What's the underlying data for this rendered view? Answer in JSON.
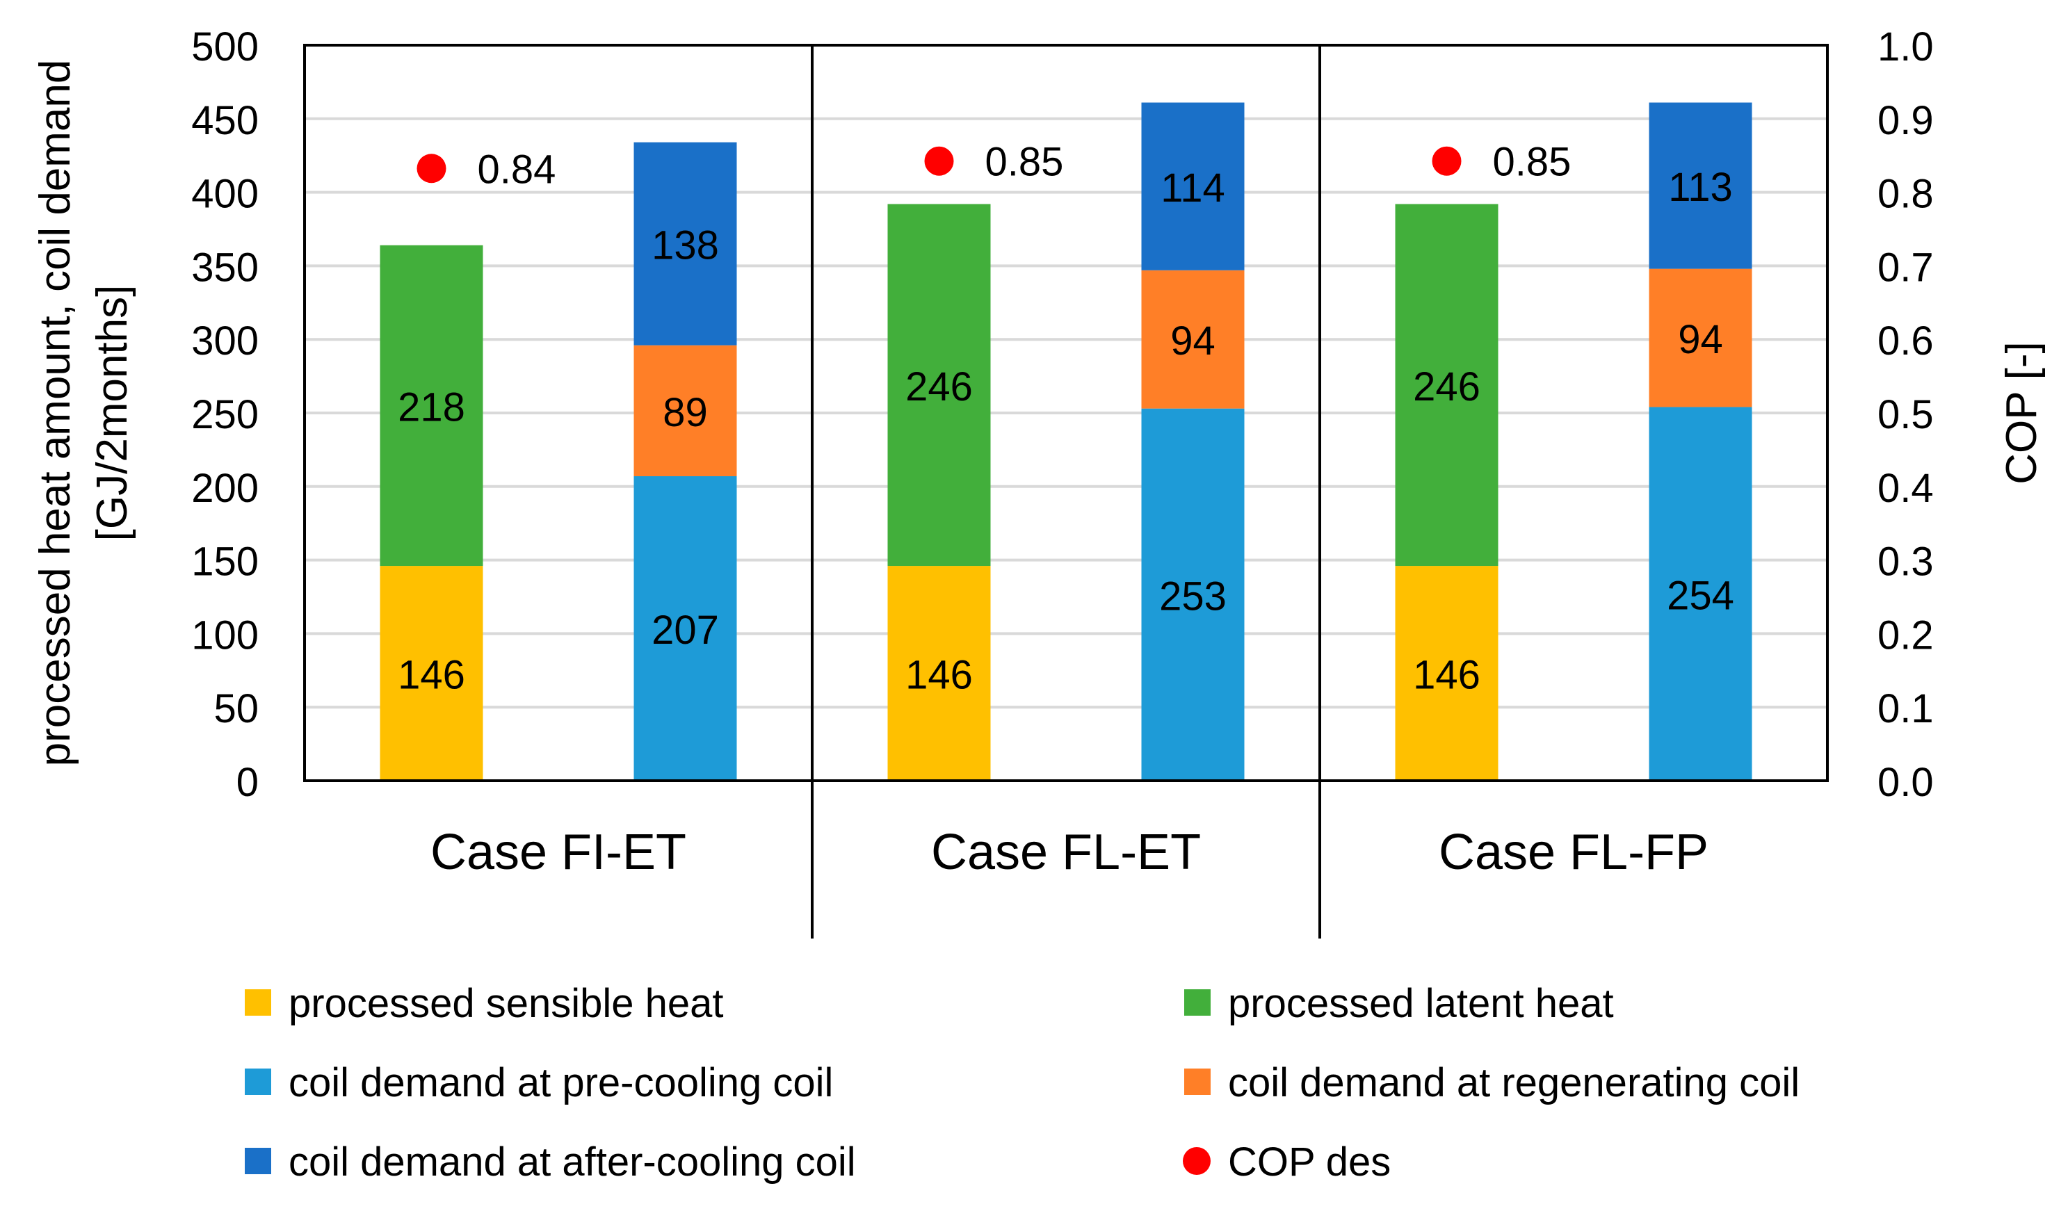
{
  "chart_data": {
    "type": "bar",
    "stacked": true,
    "groups": [
      "Case FI-ET",
      "Case FL-ET",
      "Case FL-FP"
    ],
    "ylabel_line1": "processed heat amount, coil demand",
    "ylabel_line2": "[GJ/2months]",
    "y2label": "COP [-]",
    "ylim": [
      0,
      500
    ],
    "yticks": [
      0,
      50,
      100,
      150,
      200,
      250,
      300,
      350,
      400,
      450,
      500
    ],
    "y2lim": [
      0.0,
      1.0
    ],
    "y2ticks": [
      "0.0",
      "0.1",
      "0.2",
      "0.3",
      "0.4",
      "0.5",
      "0.6",
      "0.7",
      "0.8",
      "0.9",
      "1.0"
    ],
    "grid": true,
    "processed_bars": [
      {
        "sensible": 146,
        "latent": 218
      },
      {
        "sensible": 146,
        "latent": 246
      },
      {
        "sensible": 146,
        "latent": 246
      }
    ],
    "coil_bars": [
      {
        "pre_cooling": 207,
        "regenerating": 89,
        "after_cooling": 138
      },
      {
        "pre_cooling": 253,
        "regenerating": 94,
        "after_cooling": 114
      },
      {
        "pre_cooling": 254,
        "regenerating": 94,
        "after_cooling": 113
      }
    ],
    "cop_des": [
      0.84,
      0.85,
      0.85
    ],
    "cop_labels": [
      "0.84",
      "0.85",
      "0.85"
    ],
    "legend": {
      "sensible": "processed sensible heat",
      "latent": "processed latent heat",
      "pre_cooling": "coil demand at pre-cooling coil",
      "regenerating": "coil demand at regenerating coil",
      "after_cooling": "coil demand at after-cooling coil",
      "cop": "COP des"
    },
    "colors": {
      "sensible": "#FFC000",
      "latent": "#42AF3B",
      "pre_cooling": "#1E9BD7",
      "regenerating": "#FF7F27",
      "after_cooling": "#1A70C8",
      "cop": "#FF0000",
      "grid": "#D9D9D9"
    }
  }
}
